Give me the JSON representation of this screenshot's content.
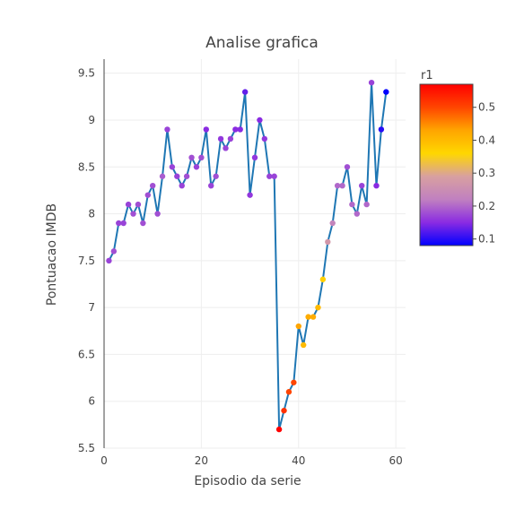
{
  "chart_data": {
    "type": "scatter",
    "title": "Analise grafica",
    "xlabel": "Episodio da serie",
    "ylabel": "Pontuacao IMDB",
    "xlim": [
      0,
      62
    ],
    "ylim": [
      5.5,
      9.65
    ],
    "x_ticks": [
      0,
      20,
      40,
      60
    ],
    "x_tick_labels": [
      "0",
      "20",
      "40",
      "60"
    ],
    "y_ticks": [
      5.5,
      6,
      6.5,
      7,
      7.5,
      8,
      8.5,
      9,
      9.5
    ],
    "y_tick_labels": [
      "5.5",
      "6",
      "6.5",
      "7",
      "7.5",
      "8",
      "8.5",
      "9",
      "9.5"
    ],
    "grid": true,
    "line_color": "#1f77b4",
    "colorbar": {
      "title": "r1",
      "range": [
        0.08,
        0.57
      ],
      "ticks": [
        0.1,
        0.2,
        0.3,
        0.4,
        0.5
      ],
      "tick_labels": [
        "0.1",
        "0.2",
        "0.3",
        "0.4",
        "0.5"
      ],
      "colorscale": [
        "#0000ff",
        "#8a2be2",
        "#c080c0",
        "#d8a0a0",
        "#ffd700",
        "#ffa500",
        "#ff4500",
        "#ff0000"
      ]
    },
    "series": [
      {
        "x": [
          1,
          2,
          3,
          4,
          5,
          6,
          7,
          8,
          9,
          10,
          11,
          12,
          13,
          14,
          15,
          16,
          17,
          18,
          19,
          20,
          21,
          22,
          23,
          24,
          25,
          26,
          27,
          28,
          29,
          30,
          31,
          32,
          33,
          34,
          35,
          36,
          37,
          38,
          39,
          40,
          41,
          42,
          43,
          44,
          45,
          46,
          47,
          48,
          49,
          50,
          51,
          52,
          53,
          54,
          55,
          56,
          57,
          58
        ],
        "y": [
          7.5,
          7.6,
          7.9,
          7.9,
          8.1,
          8.0,
          8.1,
          7.9,
          8.2,
          8.3,
          8.0,
          8.4,
          8.9,
          8.5,
          8.4,
          8.3,
          8.4,
          8.6,
          8.5,
          8.6,
          8.9,
          8.3,
          8.4,
          8.8,
          8.7,
          8.8,
          8.9,
          8.9,
          9.3,
          8.2,
          8.6,
          9.0,
          8.8,
          8.4,
          8.4,
          5.7,
          5.9,
          6.1,
          6.2,
          6.8,
          6.6,
          6.9,
          6.9,
          7.0,
          7.3,
          7.7,
          7.9,
          8.3,
          8.3,
          8.5,
          8.1,
          8.0,
          8.3,
          8.1,
          9.4,
          8.3,
          8.9,
          9.3
        ],
        "r1": [
          0.17,
          0.18,
          0.17,
          0.17,
          0.17,
          0.18,
          0.18,
          0.18,
          0.18,
          0.18,
          0.18,
          0.19,
          0.17,
          0.17,
          0.17,
          0.17,
          0.18,
          0.18,
          0.17,
          0.18,
          0.15,
          0.17,
          0.18,
          0.16,
          0.17,
          0.17,
          0.15,
          0.15,
          0.13,
          0.16,
          0.16,
          0.15,
          0.16,
          0.17,
          0.17,
          0.57,
          0.52,
          0.5,
          0.5,
          0.43,
          0.4,
          0.42,
          0.42,
          0.4,
          0.37,
          0.27,
          0.23,
          0.2,
          0.2,
          0.18,
          0.2,
          0.2,
          0.17,
          0.2,
          0.17,
          0.15,
          0.1,
          0.08
        ]
      }
    ]
  }
}
